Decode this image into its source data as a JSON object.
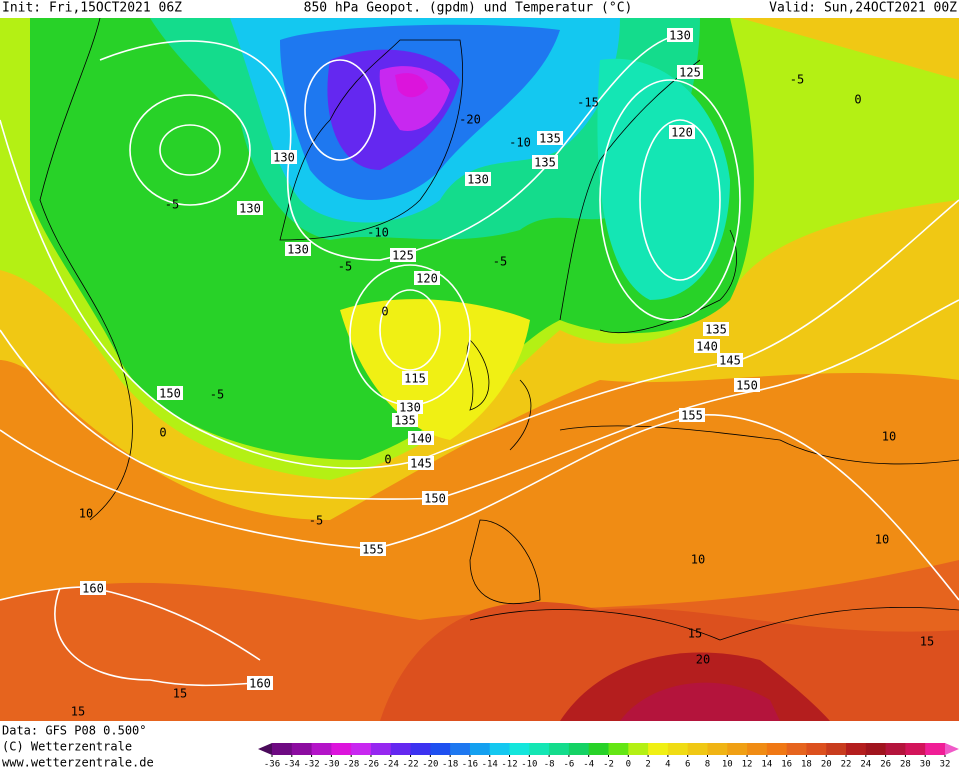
{
  "header": {
    "init": "Init: Fri,15OCT2021 06Z",
    "title": "850 hPa Geopot. (gpdm) und Temperatur (°C)",
    "valid": "Valid: Sun,24OCT2021 00Z"
  },
  "footer": {
    "data": "Data: GFS P08 0.500°",
    "copyright": "(C) Wetterzentrale",
    "url": "www.wetterzentrale.de"
  },
  "colorbar": {
    "labels": [
      -36,
      -34,
      -32,
      -30,
      -28,
      -26,
      -24,
      -22,
      -20,
      -18,
      -16,
      -14,
      -12,
      -10,
      -8,
      -6,
      -4,
      -2,
      0,
      2,
      4,
      6,
      8,
      10,
      12,
      14,
      16,
      18,
      20,
      22,
      24,
      26,
      28,
      30,
      32
    ],
    "colors": [
      "#4a0a5a",
      "#6e0a82",
      "#8c0ca0",
      "#b414c8",
      "#dc14dc",
      "#c828f0",
      "#9628f0",
      "#6428f0",
      "#3c32f0",
      "#1e50f0",
      "#1e78f0",
      "#14a0f0",
      "#14c8f0",
      "#14e6dc",
      "#14e6b4",
      "#14dc8c",
      "#14d264",
      "#28d228",
      "#64e614",
      "#b4f014",
      "#f0f014",
      "#f0dc14",
      "#f0c814",
      "#f0b414",
      "#f0a014",
      "#f08c14",
      "#f07814",
      "#e6641e",
      "#dc501e",
      "#c83c1e",
      "#b41e1e",
      "#a0141e",
      "#b4143c",
      "#d2145a",
      "#f01e96",
      "#f05ac8"
    ]
  },
  "geopotential_labels": [
    "130",
    "125",
    "120",
    "135",
    "135",
    "130",
    "130",
    "130",
    "130",
    "125",
    "120",
    "115",
    "130",
    "135",
    "140",
    "145",
    "150",
    "155",
    "160",
    "160",
    "135",
    "140",
    "145",
    "150",
    "155",
    "150"
  ],
  "temperature_labels": [
    "-5",
    "-15",
    "-10",
    "-20",
    "-5",
    "-5",
    "-5",
    "-10",
    "0",
    "0",
    "-5",
    "0",
    "0",
    "10",
    "-5",
    "10",
    "10",
    "10",
    "15",
    "15",
    "15",
    "15",
    "20"
  ]
}
